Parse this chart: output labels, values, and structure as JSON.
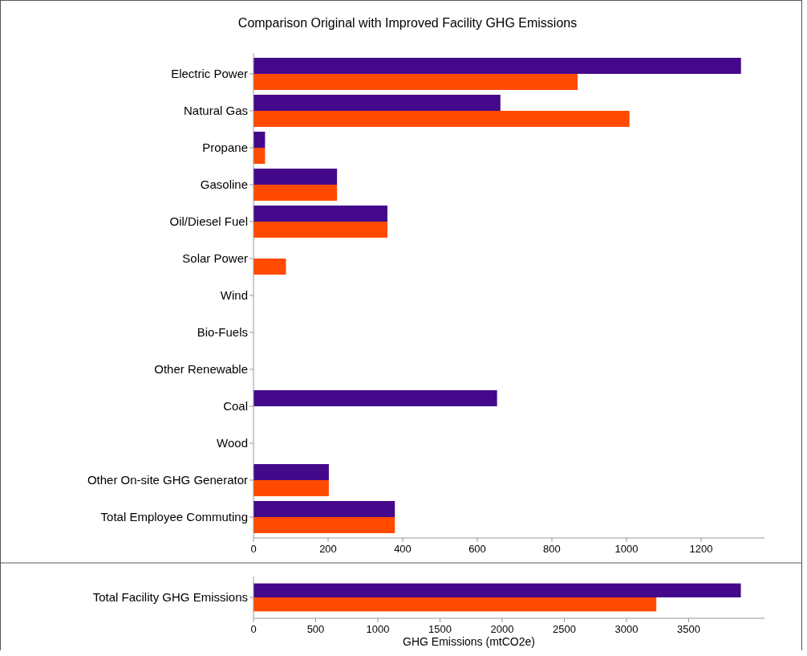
{
  "chart_data": [
    {
      "type": "bar",
      "orientation": "horizontal",
      "title": "Comparison Original with Improved Facility GHG Emissions",
      "categories": [
        "Electric Power",
        "Natural Gas",
        "Propane",
        "Gasoline",
        "Oil/Diesel Fuel",
        "Solar Power",
        "Wind",
        "Bio-Fuels",
        "Other Renewable",
        "Coal",
        "Wood",
        "Other On-site GHG Generator",
        "Total Employee Commuting"
      ],
      "series": [
        {
          "color": "#44088a",
          "values": [
            1307,
            662,
            31,
            224,
            359,
            null,
            null,
            null,
            null,
            653,
            null,
            202,
            379
          ]
        },
        {
          "color": "#ff4a00",
          "values": [
            869,
            1008,
            31,
            224,
            359,
            87,
            null,
            null,
            null,
            null,
            null,
            202,
            379
          ]
        }
      ],
      "xlim": [
        0,
        1370
      ],
      "xticks": [
        0,
        200,
        400,
        600,
        800,
        1000,
        1200
      ],
      "grid": false
    },
    {
      "type": "bar",
      "orientation": "horizontal",
      "categories": [
        "Total Facility GHG Emissions"
      ],
      "xlabel": "GHG Emissions (mtCO2e)",
      "series": [
        {
          "color": "#44088a",
          "values": [
            3920
          ]
        },
        {
          "color": "#ff4a00",
          "values": [
            3240
          ]
        }
      ],
      "xlim": [
        0,
        4110
      ],
      "xticks": [
        0,
        500,
        1000,
        1500,
        2000,
        2500,
        3000,
        3500
      ],
      "grid": false
    }
  ]
}
